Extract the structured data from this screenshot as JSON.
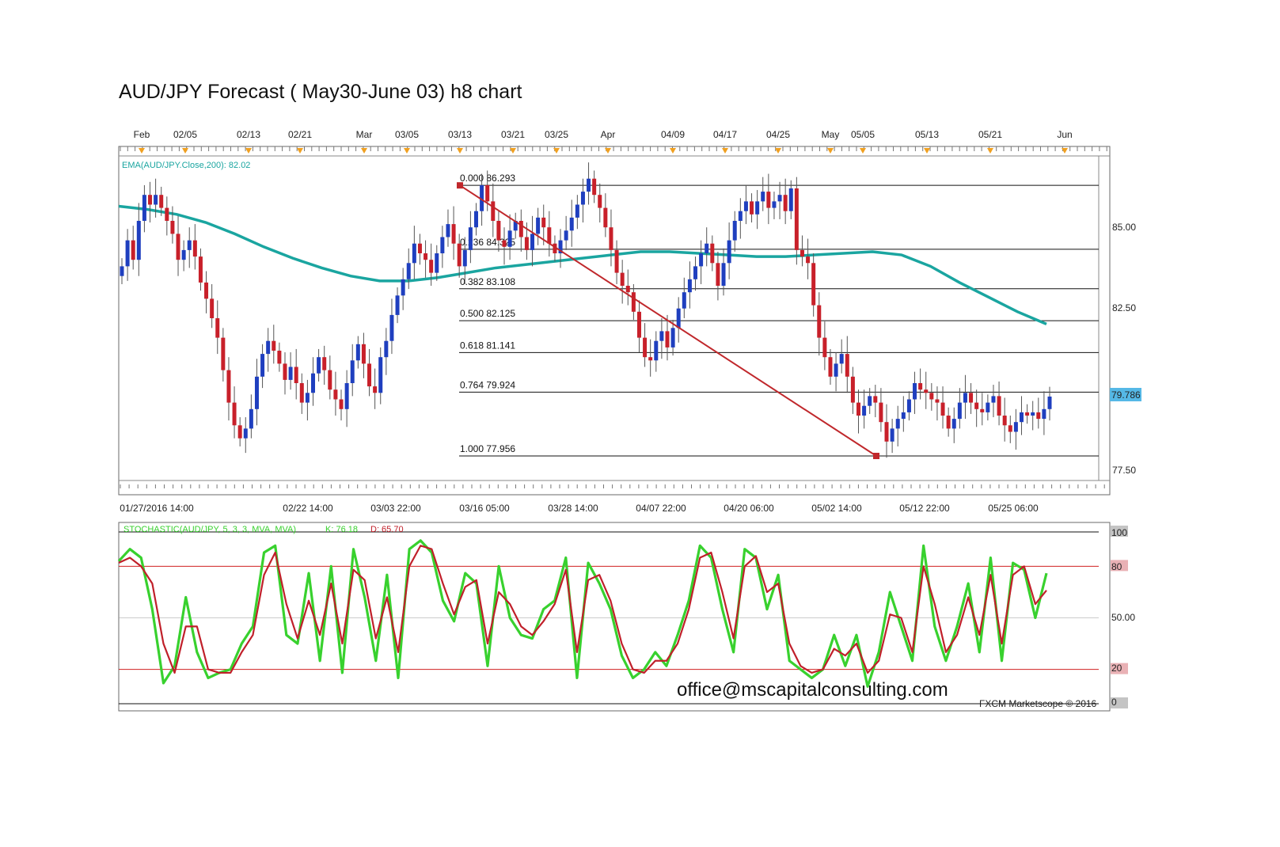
{
  "title": "AUD/JPY Forecast ( May30-June 03) h8 chart",
  "watermark": "office@mscapitalconsulting.com",
  "copyright": "FXCM Marketscope © 2016",
  "colors": {
    "ema": "#1aa5a0",
    "bull": "#1f3fbf",
    "bear": "#c8202a",
    "fib_trend": "#c0282c",
    "stoch_k": "#38d12e",
    "stoch_d": "#c0202a",
    "last_price_bg": "#55b8e6"
  },
  "top_axis": {
    "labels": [
      "Feb",
      "02/05",
      "02/13",
      "02/21",
      "Mar",
      "03/05",
      "03/13",
      "03/21",
      "03/25",
      "Apr",
      "04/09",
      "04/17",
      "04/25",
      "May",
      "05/05",
      "05/13",
      "05/21",
      "Jun"
    ]
  },
  "bottom_axis": {
    "labels": [
      "01/27/2016 14:00",
      "02/22 14:00",
      "03/03 22:00",
      "03/16 05:00",
      "03/28 14:00",
      "04/07 22:00",
      "04/20 06:00",
      "05/02 14:00",
      "05/12 22:00",
      "05/25 06:00"
    ]
  },
  "price_axis": {
    "labels": [
      "85.00",
      "82.50",
      "77.50"
    ],
    "last_price": "79.786"
  },
  "ema_label": "EMA(AUD/JPY.Close,200): 82.02",
  "stoch_label": {
    "name": "STOCHASTIC(AUD/JPY, 5, 3, 3, MVA, MVA)",
    "k": "K: 76.18",
    "d": "D: 65.70"
  },
  "stoch_axis": {
    "labels": [
      "100",
      "80",
      "50.00",
      "20",
      "0"
    ]
  },
  "fib_levels": [
    {
      "ratio": "0.000",
      "price": "86.293",
      "value": 86.293
    },
    {
      "ratio": "0.236",
      "price": "84.325",
      "value": 84.325
    },
    {
      "ratio": "0.382",
      "price": "83.108",
      "value": 83.108
    },
    {
      "ratio": "0.500",
      "price": "82.125",
      "value": 82.125
    },
    {
      "ratio": "0.618",
      "price": "81.141",
      "value": 81.141
    },
    {
      "ratio": "0.764",
      "price": "79.924",
      "value": 79.924
    },
    {
      "ratio": "1.000",
      "price": "77.956",
      "value": 77.956
    }
  ],
  "chart_data": [
    {
      "type": "candlestick",
      "title": "AUD/JPY Forecast ( May30-June 03) h8 chart",
      "ylim": [
        77.2,
        87.2
      ],
      "x_range": [
        "2016-01-27",
        "2016-06-01"
      ],
      "close": [
        83.8,
        84.6,
        84.0,
        85.2,
        86.0,
        85.7,
        86.0,
        85.6,
        85.2,
        84.8,
        84.0,
        84.3,
        84.6,
        84.1,
        83.3,
        82.8,
        82.2,
        81.6,
        80.6,
        79.6,
        78.9,
        78.5,
        78.8,
        79.4,
        80.4,
        81.1,
        81.5,
        81.2,
        80.8,
        80.3,
        80.7,
        80.2,
        79.6,
        79.9,
        80.5,
        81.0,
        80.6,
        80.0,
        79.7,
        79.4,
        80.2,
        80.9,
        81.4,
        80.8,
        80.1,
        79.9,
        81.0,
        81.5,
        82.3,
        82.9,
        83.4,
        83.9,
        84.5,
        84.2,
        84.0,
        83.6,
        84.2,
        84.7,
        85.1,
        84.5,
        83.8,
        84.3,
        85.0,
        85.5,
        86.3,
        85.8,
        85.2,
        84.6,
        84.4,
        84.9,
        85.2,
        84.7,
        84.3,
        84.8,
        85.3,
        85.0,
        84.5,
        84.2,
        84.6,
        84.9,
        85.3,
        85.7,
        86.1,
        86.5,
        86.0,
        85.6,
        85.0,
        84.3,
        83.6,
        83.2,
        83.0,
        82.4,
        81.6,
        81.0,
        80.9,
        81.5,
        81.8,
        81.3,
        81.9,
        82.5,
        83.0,
        83.4,
        83.8,
        84.2,
        84.5,
        83.9,
        83.2,
        83.9,
        84.6,
        85.2,
        85.5,
        85.8,
        85.4,
        85.8,
        86.1,
        85.6,
        85.8,
        86.0,
        85.5,
        86.2,
        84.3,
        84.1,
        83.9,
        82.6,
        81.6,
        81.0,
        80.4,
        80.8,
        81.1,
        80.4,
        79.6,
        79.2,
        79.5,
        79.8,
        79.6,
        79.0,
        78.4,
        78.8,
        79.1,
        79.3,
        79.7,
        80.2,
        80.0,
        79.9,
        79.7,
        79.6,
        79.2,
        78.8,
        79.1,
        79.6,
        79.9,
        79.6,
        79.4,
        79.3,
        79.6,
        79.8,
        79.2,
        78.9,
        78.7,
        79.0,
        79.3,
        79.2,
        79.3,
        79.1,
        79.4,
        79.786
      ]
    },
    {
      "type": "line",
      "name": "EMA(AUD/JPY.Close,200): 82.02",
      "values": [
        85.65,
        85.55,
        85.4,
        85.15,
        84.8,
        84.4,
        84.05,
        83.75,
        83.5,
        83.35,
        83.35,
        83.45,
        83.6,
        83.75,
        83.85,
        83.95,
        84.05,
        84.15,
        84.25,
        84.25,
        84.2,
        84.15,
        84.1,
        84.1,
        84.15,
        84.2,
        84.25,
        84.15,
        83.8,
        83.3,
        82.85,
        82.4,
        82.02
      ]
    },
    {
      "type": "line",
      "name": "STOCHASTIC(AUD/JPY, 5, 3, 3, MVA, MVA)",
      "ylim": [
        0,
        100
      ],
      "series": [
        {
          "name": "K: 76.18",
          "values": [
            83,
            90,
            85,
            55,
            12,
            22,
            62,
            30,
            15,
            18,
            20,
            35,
            45,
            88,
            92,
            40,
            35,
            76,
            25,
            80,
            18,
            90,
            62,
            25,
            75,
            15,
            90,
            95,
            88,
            60,
            48,
            76,
            70,
            22,
            80,
            50,
            40,
            38,
            55,
            60,
            85,
            15,
            82,
            70,
            55,
            28,
            15,
            20,
            30,
            22,
            40,
            60,
            92,
            85,
            55,
            30,
            90,
            85,
            55,
            75,
            25,
            20,
            15,
            20,
            40,
            22,
            40,
            10,
            30,
            65,
            45,
            25,
            92,
            45,
            25,
            45,
            70,
            30,
            85,
            25,
            82,
            78,
            50,
            76
          ]
        },
        {
          "name": "D: 65.70",
          "values": [
            82,
            85,
            80,
            70,
            35,
            18,
            45,
            45,
            20,
            18,
            18,
            30,
            40,
            75,
            88,
            58,
            38,
            60,
            40,
            70,
            35,
            78,
            72,
            38,
            62,
            30,
            80,
            92,
            90,
            70,
            52,
            68,
            72,
            35,
            65,
            58,
            45,
            40,
            48,
            58,
            78,
            30,
            72,
            75,
            60,
            35,
            20,
            18,
            25,
            25,
            35,
            55,
            85,
            88,
            65,
            38,
            80,
            86,
            65,
            70,
            35,
            22,
            18,
            20,
            32,
            28,
            35,
            18,
            25,
            52,
            50,
            30,
            80,
            58,
            30,
            40,
            62,
            40,
            75,
            35,
            75,
            80,
            58,
            66
          ]
        }
      ]
    }
  ]
}
